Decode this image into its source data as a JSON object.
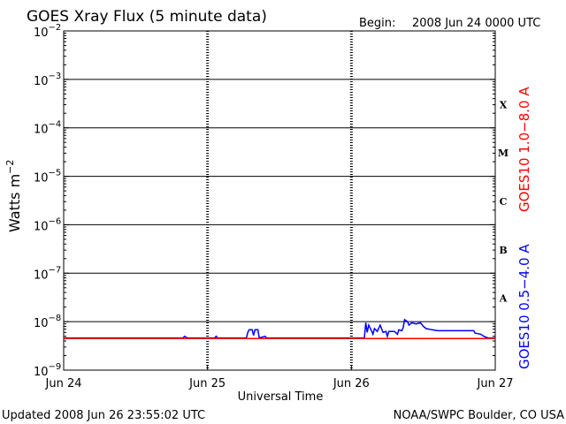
{
  "chart_data": {
    "type": "line",
    "title": "GOES Xray Flux (5 minute data)",
    "begin_label": "Begin:",
    "begin_value": "2008 Jun 24 0000 UTC",
    "ylabel_main": "Watts m",
    "ylabel_sup": "−2",
    "xlabel": "Universal Time",
    "y_scale": "log",
    "ylim": [
      1e-09,
      0.01
    ],
    "y_ticks": [
      {
        "exp": "−2",
        "v": 0.01
      },
      {
        "exp": "−3",
        "v": 0.001
      },
      {
        "exp": "−4",
        "v": 0.0001
      },
      {
        "exp": "−5",
        "v": 1e-05
      },
      {
        "exp": "−6",
        "v": 1e-06
      },
      {
        "exp": "−7",
        "v": 1e-07
      },
      {
        "exp": "−8",
        "v": 1e-08
      },
      {
        "exp": "−9",
        "v": 1e-09
      }
    ],
    "y_tick_base": "10",
    "xlim_days": [
      0,
      3
    ],
    "x_ticks": [
      {
        "label": "Jun 24",
        "day": 0
      },
      {
        "label": "Jun 25",
        "day": 1
      },
      {
        "label": "Jun 26",
        "day": 2
      },
      {
        "label": "Jun 27",
        "day": 3
      }
    ],
    "flare_classes": [
      {
        "label": "X",
        "v": 0.000316
      },
      {
        "label": "M",
        "v": 3.16e-05
      },
      {
        "label": "C",
        "v": 3.16e-06
      },
      {
        "label": "B",
        "v": 3.16e-07
      },
      {
        "label": "A",
        "v": 3.16e-08
      }
    ],
    "series": [
      {
        "name": "GOES10 1.0−8.0 A",
        "color": "#ff0000",
        "points": [
          [
            0,
            4.5e-09
          ],
          [
            2.93,
            4.5e-09
          ],
          [
            3,
            4.5e-09
          ]
        ]
      },
      {
        "name": "GOES10 0.5−4.0 A",
        "color": "#0000ff",
        "points": [
          [
            0.0,
            4.6e-09
          ],
          [
            0.83,
            4.6e-09
          ],
          [
            0.84,
            5e-09
          ],
          [
            0.86,
            4.6e-09
          ],
          [
            1.0,
            4.6e-09
          ],
          [
            1.05,
            4.6e-09
          ],
          [
            1.06,
            5e-09
          ],
          [
            1.07,
            4.6e-09
          ],
          [
            1.1,
            4.6e-09
          ],
          [
            1.2,
            4.6e-09
          ],
          [
            1.27,
            4.6e-09
          ],
          [
            1.28,
            6e-09
          ],
          [
            1.29,
            6.8e-09
          ],
          [
            1.31,
            6.8e-09
          ],
          [
            1.32,
            5.2e-09
          ],
          [
            1.33,
            6.8e-09
          ],
          [
            1.35,
            6.8e-09
          ],
          [
            1.36,
            4.6e-09
          ],
          [
            1.4,
            5e-09
          ],
          [
            1.41,
            4.6e-09
          ],
          [
            2.0,
            4.6e-09
          ],
          [
            2.09,
            4.6e-09
          ],
          [
            2.1,
            9.5e-09
          ],
          [
            2.11,
            6e-09
          ],
          [
            2.12,
            8.5e-09
          ],
          [
            2.14,
            6.5e-09
          ],
          [
            2.15,
            5.5e-09
          ],
          [
            2.16,
            7.2e-09
          ],
          [
            2.18,
            6.3e-09
          ],
          [
            2.2,
            8.5e-09
          ],
          [
            2.22,
            6e-09
          ],
          [
            2.24,
            6.3e-09
          ],
          [
            2.25,
            5e-09
          ],
          [
            2.26,
            6.3e-09
          ],
          [
            2.3,
            6.3e-09
          ],
          [
            2.32,
            5.5e-09
          ],
          [
            2.33,
            6.8e-09
          ],
          [
            2.35,
            6.5e-09
          ],
          [
            2.36,
            7.5e-09
          ],
          [
            2.37,
            1.1e-08
          ],
          [
            2.39,
            1e-08
          ],
          [
            2.4,
            8.5e-09
          ],
          [
            2.42,
            9.5e-09
          ],
          [
            2.45,
            9e-09
          ],
          [
            2.48,
            9.5e-09
          ],
          [
            2.5,
            8e-09
          ],
          [
            2.52,
            7.2e-09
          ],
          [
            2.56,
            6.8e-09
          ],
          [
            2.6,
            6.5e-09
          ],
          [
            2.85,
            6.5e-09
          ],
          [
            2.86,
            5.8e-09
          ],
          [
            2.9,
            5.5e-09
          ],
          [
            2.92,
            5e-09
          ],
          [
            2.95,
            4.6e-09
          ],
          [
            3.0,
            4.6e-09
          ]
        ]
      }
    ],
    "grid": "horizontal at decades, dashed vertical at day boundaries"
  },
  "footer": {
    "updated": "Updated 2008 Jun 26 23:55:02 UTC",
    "credit": "NOAA/SWPC Boulder, CO USA"
  }
}
